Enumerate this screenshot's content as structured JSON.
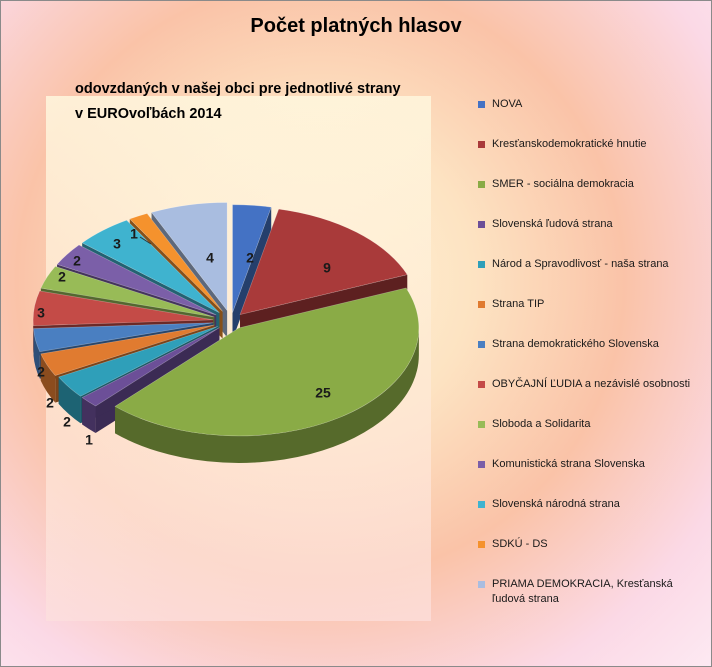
{
  "chart_data": {
    "type": "pie",
    "title": "Počet platných hlasov",
    "subtitle": [
      "odovzdaných v našej obci pre jednotlivé strany",
      "v EUROvoľbách 2014"
    ],
    "legend_position": "right",
    "slices": [
      {
        "name": "NOVA",
        "value": 2,
        "color": "#4472c4"
      },
      {
        "name": "Kresťanskodemokratické hnutie",
        "value": 9,
        "color": "#a93a3a"
      },
      {
        "name": "SMER - sociálna demokracia",
        "value": 25,
        "color": "#8aab46"
      },
      {
        "name": "Slovenská ľudová strana",
        "value": 1,
        "color": "#6c4f98"
      },
      {
        "name": "Národ a Spravodlivosť - naša strana",
        "value": 2,
        "color": "#2f9fb9"
      },
      {
        "name": "Strana TIP",
        "value": 2,
        "color": "#e07b30"
      },
      {
        "name": "Strana demokratického Slovenska",
        "value": 2,
        "color": "#4a7fc1"
      },
      {
        "name": "OBYČAJNÍ ĽUDIA a nezávislé osobnosti",
        "value": 3,
        "color": "#c44b47"
      },
      {
        "name": "Sloboda a Solidarita",
        "value": 2,
        "color": "#98bb57"
      },
      {
        "name": "Komunistická strana Slovenska",
        "value": 2,
        "color": "#7b5fa8"
      },
      {
        "name": "Slovenská národná strana",
        "value": 3,
        "color": "#3fb3cf"
      },
      {
        "name": "SDKÚ - DS",
        "value": 1,
        "color": "#f5922d"
      },
      {
        "name": "PRIAMA DEMOKRACIA, Kresťanská ľudová strana",
        "value": 4,
        "color": "#a9bde0"
      }
    ]
  }
}
